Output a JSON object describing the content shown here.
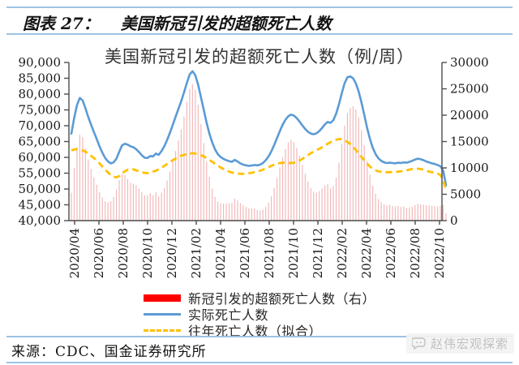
{
  "page": {
    "header": {
      "label": "图表 27：",
      "title": "美国新冠引发的超额死亡人数"
    },
    "footer": {
      "source": "来源：CDC、国金证券研究所"
    },
    "watermark": {
      "text": "赵伟宏观探索",
      "icon": "chat-bubble-icon"
    },
    "colors": {
      "rule_blue": "#9CC3E5",
      "actual_line": "#5B9BD5",
      "fitted_line": "#FFC000",
      "legend_red": "#FF0000",
      "bar_pink": "#F2B9BA",
      "axis": "#4d4d4d",
      "label": "#1a1a1a"
    }
  },
  "chart_data": {
    "type": "combo",
    "title": "美国新冠引发的超额死亡人数（例/周）",
    "x_unit": "week",
    "x_tick_labels": [
      "2020/04",
      "2020/06",
      "2020/08",
      "2020/10",
      "2020/12",
      "2021/02",
      "2021/04",
      "2021/06",
      "2021/08",
      "2021/10",
      "2021/12",
      "2022/02",
      "2022/04",
      "2022/06",
      "2022/08",
      "2022/10"
    ],
    "left_axis": {
      "min": 40000,
      "max": 90000,
      "step": 5000,
      "tick_labels": [
        "90,000",
        "85,000",
        "80,000",
        "75,000",
        "70,000",
        "65,000",
        "60,000",
        "55,000",
        "50,000",
        "45,000",
        "40,000"
      ]
    },
    "right_axis": {
      "min": 0,
      "max": 30000,
      "step": 5000,
      "tick_labels": [
        "30000",
        "25000",
        "20000",
        "15000",
        "10000",
        "5000",
        "0"
      ]
    },
    "legend_position": "bottom",
    "grid": false,
    "series": [
      {
        "name": "新冠引发的超额死亡人数（右）",
        "type": "bar",
        "axis": "right",
        "legend_color": "#FF0000",
        "bar_color": "#F2B9BA",
        "values": [
          5300,
          10000,
          13900,
          16300,
          15800,
          13700,
          11600,
          9800,
          8200,
          6800,
          5400,
          4400,
          3700,
          3500,
          3700,
          4500,
          5900,
          7700,
          8900,
          8700,
          7900,
          7200,
          7000,
          6700,
          6100,
          5400,
          4800,
          4800,
          5200,
          4800,
          5400,
          4600,
          5300,
          6200,
          7600,
          9300,
          11200,
          13200,
          15200,
          17300,
          19700,
          22500,
          25000,
          25900,
          24800,
          22000,
          18300,
          14700,
          11200,
          8300,
          6100,
          4500,
          3600,
          3300,
          3200,
          3200,
          3300,
          3400,
          4200,
          3800,
          3300,
          2900,
          2600,
          2300,
          2300,
          2300,
          2000,
          1900,
          2100,
          2600,
          3400,
          4600,
          6200,
          8100,
          10100,
          12000,
          13600,
          14800,
          15300,
          14900,
          13800,
          12300,
          10600,
          8900,
          7400,
          6200,
          5500,
          5300,
          5600,
          6100,
          6700,
          6900,
          6100,
          6500,
          8200,
          11000,
          14600,
          18000,
          20400,
          21400,
          21700,
          21100,
          19600,
          17200,
          14300,
          11300,
          8700,
          6600,
          5100,
          4100,
          3500,
          3100,
          2900,
          3000,
          2800,
          2700,
          2800,
          2600,
          2700,
          2400,
          2500,
          2600,
          2900,
          3200,
          3100,
          3000,
          2900,
          2900,
          2800,
          2800,
          2700,
          2800,
          3000,
          1400
        ]
      },
      {
        "name": "实际死亡人数",
        "type": "line",
        "axis": "left",
        "color": "#5B9BD5",
        "values": [
          67500,
          72500,
          76500,
          78800,
          78000,
          75500,
          72800,
          70300,
          68000,
          65800,
          63500,
          61500,
          59800,
          58700,
          58100,
          58400,
          59600,
          61800,
          63800,
          64300,
          64000,
          63500,
          63200,
          62600,
          61700,
          60700,
          59900,
          59800,
          60400,
          60300,
          61200,
          60800,
          62000,
          63500,
          65500,
          67800,
          70300,
          72800,
          75300,
          77800,
          80500,
          83500,
          86200,
          87200,
          86000,
          83000,
          79000,
          75000,
          71000,
          67500,
          64700,
          62500,
          61000,
          60100,
          59500,
          59100,
          58800,
          58600,
          59200,
          58700,
          58100,
          57700,
          57500,
          57300,
          57400,
          57600,
          57500,
          57700,
          58200,
          59100,
          60300,
          61900,
          63900,
          66100,
          68300,
          70300,
          71900,
          73000,
          73500,
          73200,
          72400,
          71300,
          70100,
          69000,
          68100,
          67500,
          67300,
          67600,
          68300,
          69300,
          70400,
          71200,
          70900,
          71800,
          73800,
          76800,
          80300,
          83400,
          85300,
          85600,
          85000,
          83400,
          80800,
          77300,
          73300,
          69300,
          65800,
          63000,
          61000,
          59700,
          58900,
          58400,
          58200,
          58300,
          58200,
          58100,
          58300,
          58200,
          58400,
          58300,
          58600,
          58900,
          59300,
          59600,
          59400,
          59100,
          58700,
          58400,
          58100,
          57900,
          57600,
          57200,
          55800,
          51200
        ]
      },
      {
        "name": "往年死亡人数（拟合）",
        "type": "line",
        "axis": "left",
        "color": "#FFC000",
        "dashed": true,
        "values": [
          62200,
          62500,
          62600,
          62500,
          62200,
          61800,
          61200,
          60500,
          59800,
          59000,
          58100,
          57100,
          56100,
          55200,
          54400,
          53900,
          53700,
          54100,
          54900,
          55600,
          56100,
          56300,
          56200,
          55900,
          55600,
          55300,
          55100,
          55000,
          55200,
          55500,
          55800,
          56200,
          56700,
          57300,
          57900,
          58500,
          59100,
          59600,
          60100,
          60500,
          60800,
          61000,
          61200,
          61300,
          61200,
          61000,
          60700,
          60300,
          59800,
          59200,
          58600,
          58000,
          57400,
          56800,
          56300,
          55900,
          55500,
          55200,
          55000,
          54900,
          54800,
          54800,
          54900,
          55000,
          55100,
          55300,
          55500,
          55800,
          56100,
          56500,
          56900,
          57300,
          57700,
          58000,
          58200,
          58300,
          58300,
          58200,
          58200,
          58300,
          58600,
          59000,
          59500,
          60100,
          60700,
          61300,
          61800,
          62300,
          62700,
          63200,
          63700,
          64300,
          64800,
          65300,
          65600,
          65800,
          65700,
          65400,
          64900,
          64200,
          63300,
          62300,
          61200,
          60100,
          59000,
          58000,
          57100,
          56400,
          55900,
          55600,
          55400,
          55300,
          55300,
          55300,
          55400,
          55400,
          55500,
          55600,
          55700,
          55900,
          56100,
          56300,
          56400,
          56400,
          56300,
          56100,
          55800,
          55500,
          55300,
          55100,
          54900,
          54400,
          52800,
          49800
        ]
      }
    ]
  }
}
